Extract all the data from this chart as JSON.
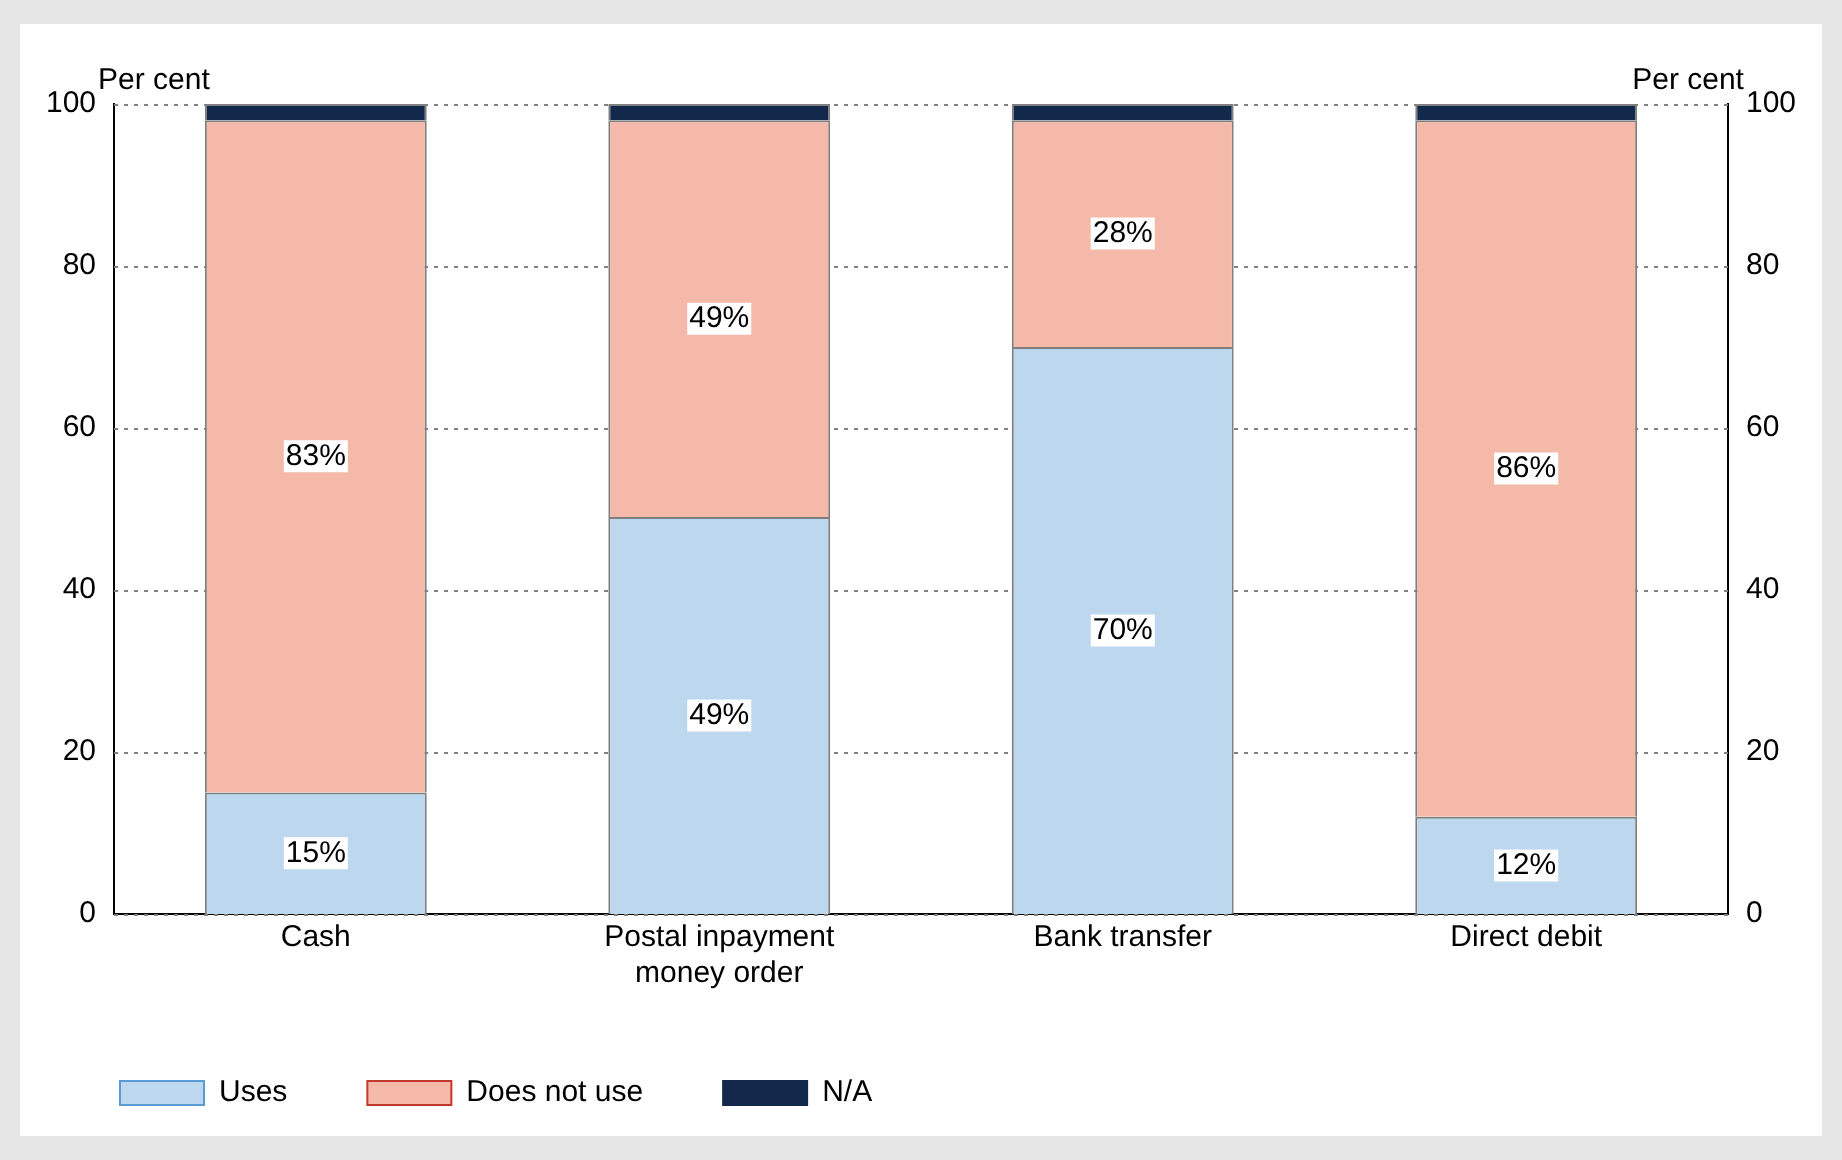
{
  "chart_data": {
    "type": "bar",
    "stacked": true,
    "ylabel": "Per cent",
    "y2label": "Per cent",
    "categories": [
      "Cash",
      "Postal inpayment\nmoney order",
      "Bank transfer",
      "Direct debit"
    ],
    "series": [
      {
        "name": "Uses",
        "color": "#bdd7ee",
        "values": [
          15,
          49,
          70,
          12
        ],
        "value_labels": [
          "15%",
          "49%",
          "70%",
          "12%"
        ]
      },
      {
        "name": "Does not use",
        "color": "#f4b9a8",
        "values": [
          83,
          49,
          28,
          86
        ],
        "value_labels": [
          "83%",
          "49%",
          "28%",
          "86%"
        ]
      },
      {
        "name": "N/A",
        "color": "#13294b",
        "values": [
          2,
          2,
          2,
          2
        ]
      }
    ],
    "ylim": [
      0,
      100
    ],
    "yticks": [
      0,
      20,
      40,
      60,
      80,
      100
    ],
    "y2lim": [
      0,
      100
    ],
    "y2ticks": [
      0,
      20,
      40,
      60,
      80,
      100
    ],
    "grid": "y",
    "legend": "bottom"
  }
}
